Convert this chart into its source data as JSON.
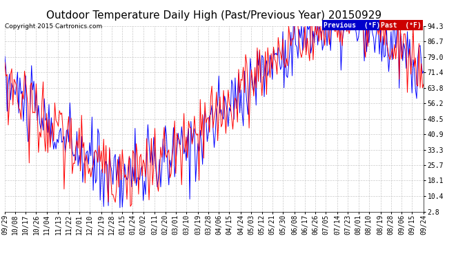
{
  "title": "Outdoor Temperature Daily High (Past/Previous Year) 20150929",
  "copyright": "Copyright 2015 Cartronics.com",
  "ytick_values": [
    94.3,
    86.7,
    79.0,
    71.4,
    63.8,
    56.2,
    48.5,
    40.9,
    33.3,
    25.7,
    18.1,
    10.4,
    2.8
  ],
  "ylim": [
    2.8,
    94.3
  ],
  "x_labels": [
    "09/29",
    "10/08",
    "10/17",
    "10/26",
    "11/04",
    "11/13",
    "11/22",
    "12/01",
    "12/10",
    "12/19",
    "12/28",
    "01/15",
    "01/24",
    "02/02",
    "02/11",
    "02/20",
    "03/01",
    "03/10",
    "03/19",
    "03/28",
    "04/06",
    "04/15",
    "04/24",
    "05/03",
    "05/12",
    "05/21",
    "05/30",
    "06/08",
    "06/17",
    "06/26",
    "07/05",
    "07/14",
    "07/23",
    "08/01",
    "08/10",
    "08/19",
    "08/28",
    "09/06",
    "09/15",
    "09/24"
  ],
  "line_previous_color": "#0000ff",
  "line_past_color": "#ff0000",
  "background_color": "#ffffff",
  "grid_color": "#bbbbbb",
  "title_fontsize": 11,
  "tick_fontsize": 7,
  "n_days": 361,
  "legend_prev_bg": "#0000cc",
  "legend_past_bg": "#cc0000"
}
